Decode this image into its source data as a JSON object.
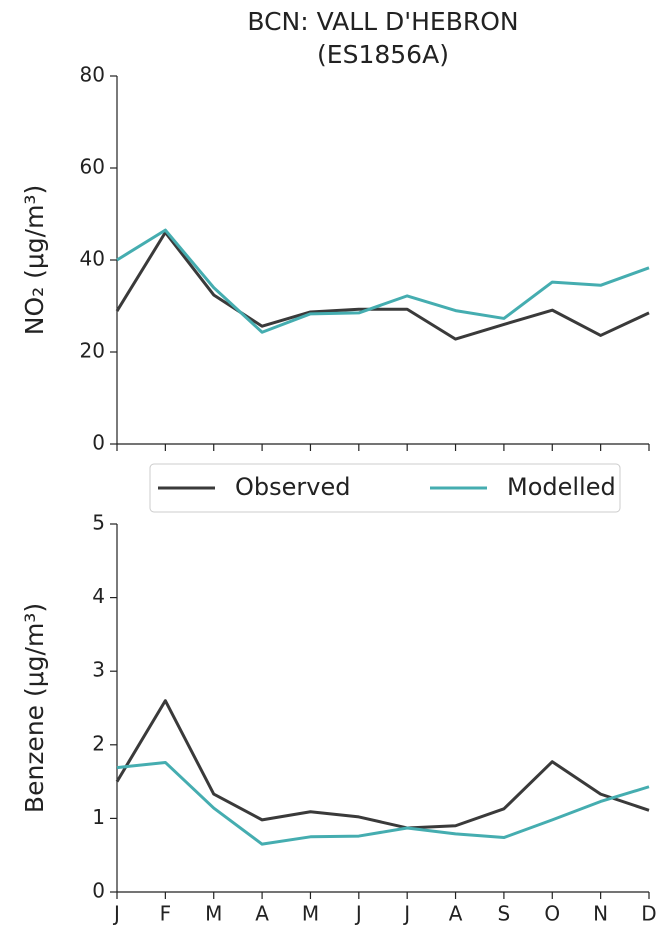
{
  "chart_data": [
    {
      "type": "line",
      "title": [
        "BCN: VALL D'HEBRON",
        "(ES1856A)"
      ],
      "y_label": "NO₂ (μg/m³)",
      "categories": [
        null,
        null,
        null,
        null,
        null,
        null,
        null,
        null,
        null,
        null,
        null,
        null
      ],
      "series": [
        {
          "name": "Observed",
          "color": "#3a3a3a",
          "values": [
            28.9,
            46,
            32.4,
            25.6,
            28.7,
            29.3,
            29.3,
            22.8,
            26,
            29.1,
            23.6,
            28.5
          ]
        },
        {
          "name": "Modelled",
          "color": "#45adb0",
          "values": [
            40,
            46.5,
            34,
            24.3,
            28.3,
            28.5,
            32.2,
            29,
            27.3,
            35.2,
            34.5,
            38.3
          ]
        }
      ],
      "ylim": [
        0,
        80
      ],
      "yticks": [
        0,
        20,
        40,
        60,
        80
      ]
    },
    {
      "type": "line",
      "y_label": "Benzene (μg/m³)",
      "categories": [
        "J",
        "F",
        "M",
        "A",
        "M",
        "J",
        "J",
        "A",
        "S",
        "O",
        "N",
        "D"
      ],
      "series": [
        {
          "color": "#3a3a3a",
          "values": [
            1.5,
            2.6,
            1.33,
            0.98,
            1.09,
            1.02,
            0.87,
            0.9,
            1.13,
            1.77,
            1.33,
            1.11
          ]
        },
        {
          "color": "#45adb0",
          "values": [
            1.69,
            1.76,
            1.14,
            0.65,
            0.75,
            0.76,
            0.87,
            0.79,
            0.74,
            0.98,
            1.23,
            1.43
          ]
        }
      ],
      "ylim": [
        0,
        5
      ],
      "yticks": [
        0,
        1,
        2,
        3,
        4,
        5
      ]
    }
  ]
}
